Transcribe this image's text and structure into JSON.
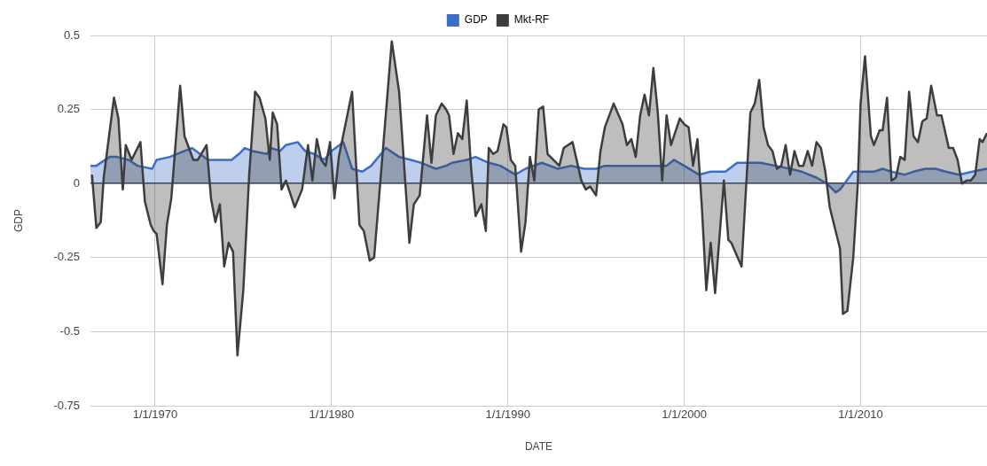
{
  "chart_data": {
    "type": "area",
    "xlabel": "DATE",
    "ylabel": "GDP",
    "legend": "top",
    "grid": true,
    "xlim": [
      "1966-05",
      "2017-03"
    ],
    "xticks": [
      {
        "value": "1970-01-01",
        "label": "1/1/1970"
      },
      {
        "value": "1980-01-01",
        "label": "1/1/1980"
      },
      {
        "value": "1990-01-01",
        "label": "1/1/1990"
      },
      {
        "value": "2000-01-01",
        "label": "1/1/2000"
      },
      {
        "value": "2010-01-01",
        "label": "1/1/2010"
      }
    ],
    "ylim": [
      -0.75,
      0.5
    ],
    "yticks": [
      -0.75,
      -0.5,
      -0.25,
      0,
      0.25,
      0.5
    ],
    "series": [
      {
        "name": "GDP",
        "color": "#3c6ec8",
        "x": [
          "1966-05",
          "1966-09",
          "1967-06",
          "1967-11",
          "1968-07",
          "1969-01",
          "1969-11",
          "1970-02",
          "1970-11",
          "1971-09",
          "1972-02",
          "1973-01",
          "1973-09",
          "1974-05",
          "1974-10",
          "1975-02",
          "1975-07",
          "1976-05",
          "1976-08",
          "1977-02",
          "1977-06",
          "1978-02",
          "1978-07",
          "1979-01",
          "1979-08",
          "1980-01",
          "1980-09",
          "1981-03",
          "1981-10",
          "1982-04",
          "1983-02",
          "1983-11",
          "1984-07",
          "1985-02",
          "1985-12",
          "1986-07",
          "1986-11",
          "1987-09",
          "1988-03",
          "1988-12",
          "1989-08",
          "1990-06",
          "1991-01",
          "1991-12",
          "1992-11",
          "1993-08",
          "1994-05",
          "1995-01",
          "1995-07",
          "1996-07",
          "1997-09",
          "1999-01",
          "1999-06",
          "2000-01",
          "2000-11",
          "2001-07",
          "2002-05",
          "2003-01",
          "2004-05",
          "2005-03",
          "2006-01",
          "2006-09",
          "2007-07",
          "2008-02",
          "2008-08",
          "2008-11",
          "2009-08",
          "2010-10",
          "2011-04",
          "2011-10",
          "2012-07",
          "2013-01",
          "2013-09",
          "2014-04",
          "2014-11",
          "2015-08",
          "2016-05",
          "2017-03"
        ],
        "values": [
          0.06,
          0.06,
          0.09,
          0.09,
          0.08,
          0.06,
          0.05,
          0.08,
          0.09,
          0.11,
          0.12,
          0.08,
          0.08,
          0.08,
          0.1,
          0.12,
          0.11,
          0.1,
          0.12,
          0.11,
          0.13,
          0.14,
          0.11,
          0.1,
          0.08,
          0.11,
          0.14,
          0.05,
          0.04,
          0.06,
          0.12,
          0.09,
          0.08,
          0.07,
          0.05,
          0.06,
          0.07,
          0.08,
          0.09,
          0.07,
          0.06,
          0.03,
          0.05,
          0.07,
          0.05,
          0.06,
          0.05,
          0.05,
          0.06,
          0.06,
          0.06,
          0.06,
          0.08,
          0.06,
          0.03,
          0.04,
          0.04,
          0.07,
          0.07,
          0.06,
          0.05,
          0.04,
          0.02,
          0.0,
          -0.03,
          -0.02,
          0.04,
          0.04,
          0.05,
          0.04,
          0.03,
          0.04,
          0.05,
          0.05,
          0.04,
          0.03,
          0.04,
          0.05
        ]
      },
      {
        "name": "Mkt-RF",
        "color": "#3d3d3d",
        "x": [
          "1966-06",
          "1966-09",
          "1966-12",
          "1967-02",
          "1967-09",
          "1967-12",
          "1968-03",
          "1968-05",
          "1968-09",
          "1969-03",
          "1969-06",
          "1969-10",
          "1969-12",
          "1970-02",
          "1970-06",
          "1970-09",
          "1970-12",
          "1971-06",
          "1971-09",
          "1972-03",
          "1972-06",
          "1972-12",
          "1973-03",
          "1973-06",
          "1973-09",
          "1973-12",
          "1974-03",
          "1974-06",
          "1974-09",
          "1975-01",
          "1975-05",
          "1975-09",
          "1975-12",
          "1976-04",
          "1976-07",
          "1976-09",
          "1976-12",
          "1977-03",
          "1977-06",
          "1977-12",
          "1978-05",
          "1978-09",
          "1978-12",
          "1979-03",
          "1979-06",
          "1979-09",
          "1979-12",
          "1980-03",
          "1980-06",
          "1981-03",
          "1981-08",
          "1981-11",
          "1982-03",
          "1982-06",
          "1983-06",
          "1983-11",
          "1984-06",
          "1984-09",
          "1985-01",
          "1985-06",
          "1985-09",
          "1985-12",
          "1986-04",
          "1986-07",
          "1986-09",
          "1986-12",
          "1987-03",
          "1987-06",
          "1987-09",
          "1987-12",
          "1988-03",
          "1988-07",
          "1988-10",
          "1988-12",
          "1989-03",
          "1989-06",
          "1989-10",
          "1989-12",
          "1990-03",
          "1990-06",
          "1990-10",
          "1991-01",
          "1991-04",
          "1991-07",
          "1991-10",
          "1992-01",
          "1992-04",
          "1992-06",
          "1992-12",
          "1993-03",
          "1993-09",
          "1994-03",
          "1994-06",
          "1994-09",
          "1995-01",
          "1995-04",
          "1995-07",
          "1996-01",
          "1996-07",
          "1996-10",
          "1997-01",
          "1997-04",
          "1997-07",
          "1997-10",
          "1998-01",
          "1998-04",
          "1998-07",
          "1998-10",
          "1999-01",
          "1999-04",
          "1999-10",
          "2000-01",
          "2000-04",
          "2000-07",
          "2000-10",
          "2001-01",
          "2001-04",
          "2001-07",
          "2001-10",
          "2002-04",
          "2002-07",
          "2002-09",
          "2003-04",
          "2003-10",
          "2004-01",
          "2004-04",
          "2004-07",
          "2004-10",
          "2005-01",
          "2005-04",
          "2005-07",
          "2005-10",
          "2006-01",
          "2006-04",
          "2006-07",
          "2006-10",
          "2007-01",
          "2007-04",
          "2007-07",
          "2007-10",
          "2008-01",
          "2008-04",
          "2008-08",
          "2008-11",
          "2009-01",
          "2009-04",
          "2009-08",
          "2009-11",
          "2010-01",
          "2010-04",
          "2010-08",
          "2010-10",
          "2011-02",
          "2011-04",
          "2011-07",
          "2011-10",
          "2012-01",
          "2012-04",
          "2012-07",
          "2012-10",
          "2013-01",
          "2013-04",
          "2013-07",
          "2013-10",
          "2014-01",
          "2014-05",
          "2014-08",
          "2015-01",
          "2015-04",
          "2015-07",
          "2015-10",
          "2016-01",
          "2016-04",
          "2016-07",
          "2016-10",
          "2016-12",
          "2017-03"
        ],
        "values": [
          0.03,
          -0.15,
          -0.13,
          0.02,
          0.29,
          0.22,
          -0.02,
          0.13,
          0.08,
          0.14,
          -0.06,
          -0.14,
          -0.16,
          -0.17,
          -0.34,
          -0.14,
          -0.05,
          0.33,
          0.16,
          0.08,
          0.08,
          0.13,
          -0.05,
          -0.13,
          -0.07,
          -0.28,
          -0.2,
          -0.23,
          -0.58,
          -0.36,
          0.03,
          0.31,
          0.29,
          0.22,
          0.08,
          0.24,
          0.2,
          -0.02,
          0.01,
          -0.08,
          -0.02,
          0.13,
          0.01,
          0.15,
          0.08,
          0.06,
          0.14,
          -0.05,
          0.09,
          0.31,
          -0.14,
          -0.16,
          -0.26,
          -0.25,
          0.48,
          0.31,
          -0.2,
          -0.07,
          -0.04,
          0.23,
          0.07,
          0.23,
          0.27,
          0.25,
          0.23,
          0.1,
          0.17,
          0.15,
          0.28,
          0.05,
          -0.11,
          -0.07,
          -0.16,
          0.12,
          0.1,
          0.11,
          0.2,
          0.19,
          0.08,
          0.06,
          -0.23,
          -0.13,
          0.09,
          0.01,
          0.25,
          0.26,
          0.1,
          0.09,
          0.06,
          0.12,
          0.14,
          0.01,
          -0.02,
          -0.01,
          -0.04,
          0.11,
          0.19,
          0.27,
          0.2,
          0.13,
          0.15,
          0.09,
          0.23,
          0.3,
          0.23,
          0.39,
          0.24,
          0.01,
          0.23,
          0.13,
          0.22,
          0.2,
          0.19,
          0.06,
          0.15,
          -0.08,
          -0.36,
          -0.2,
          -0.37,
          0.01,
          -0.19,
          -0.2,
          -0.28,
          0.24,
          0.27,
          0.35,
          0.19,
          0.13,
          0.11,
          0.05,
          0.06,
          0.13,
          0.03,
          0.11,
          0.06,
          0.06,
          0.11,
          0.06,
          0.14,
          0.12,
          0.04,
          -0.08,
          -0.16,
          -0.22,
          -0.44,
          -0.43,
          -0.25,
          -0.01,
          0.27,
          0.43,
          0.16,
          0.13,
          0.18,
          0.18,
          0.29,
          0.01,
          0.02,
          0.09,
          0.08,
          0.31,
          0.16,
          0.14,
          0.21,
          0.22,
          0.33,
          0.23,
          0.23,
          0.12,
          0.12,
          0.08,
          0.0,
          0.01,
          0.01,
          0.03,
          0.15,
          0.14,
          0.17
        ]
      }
    ]
  }
}
